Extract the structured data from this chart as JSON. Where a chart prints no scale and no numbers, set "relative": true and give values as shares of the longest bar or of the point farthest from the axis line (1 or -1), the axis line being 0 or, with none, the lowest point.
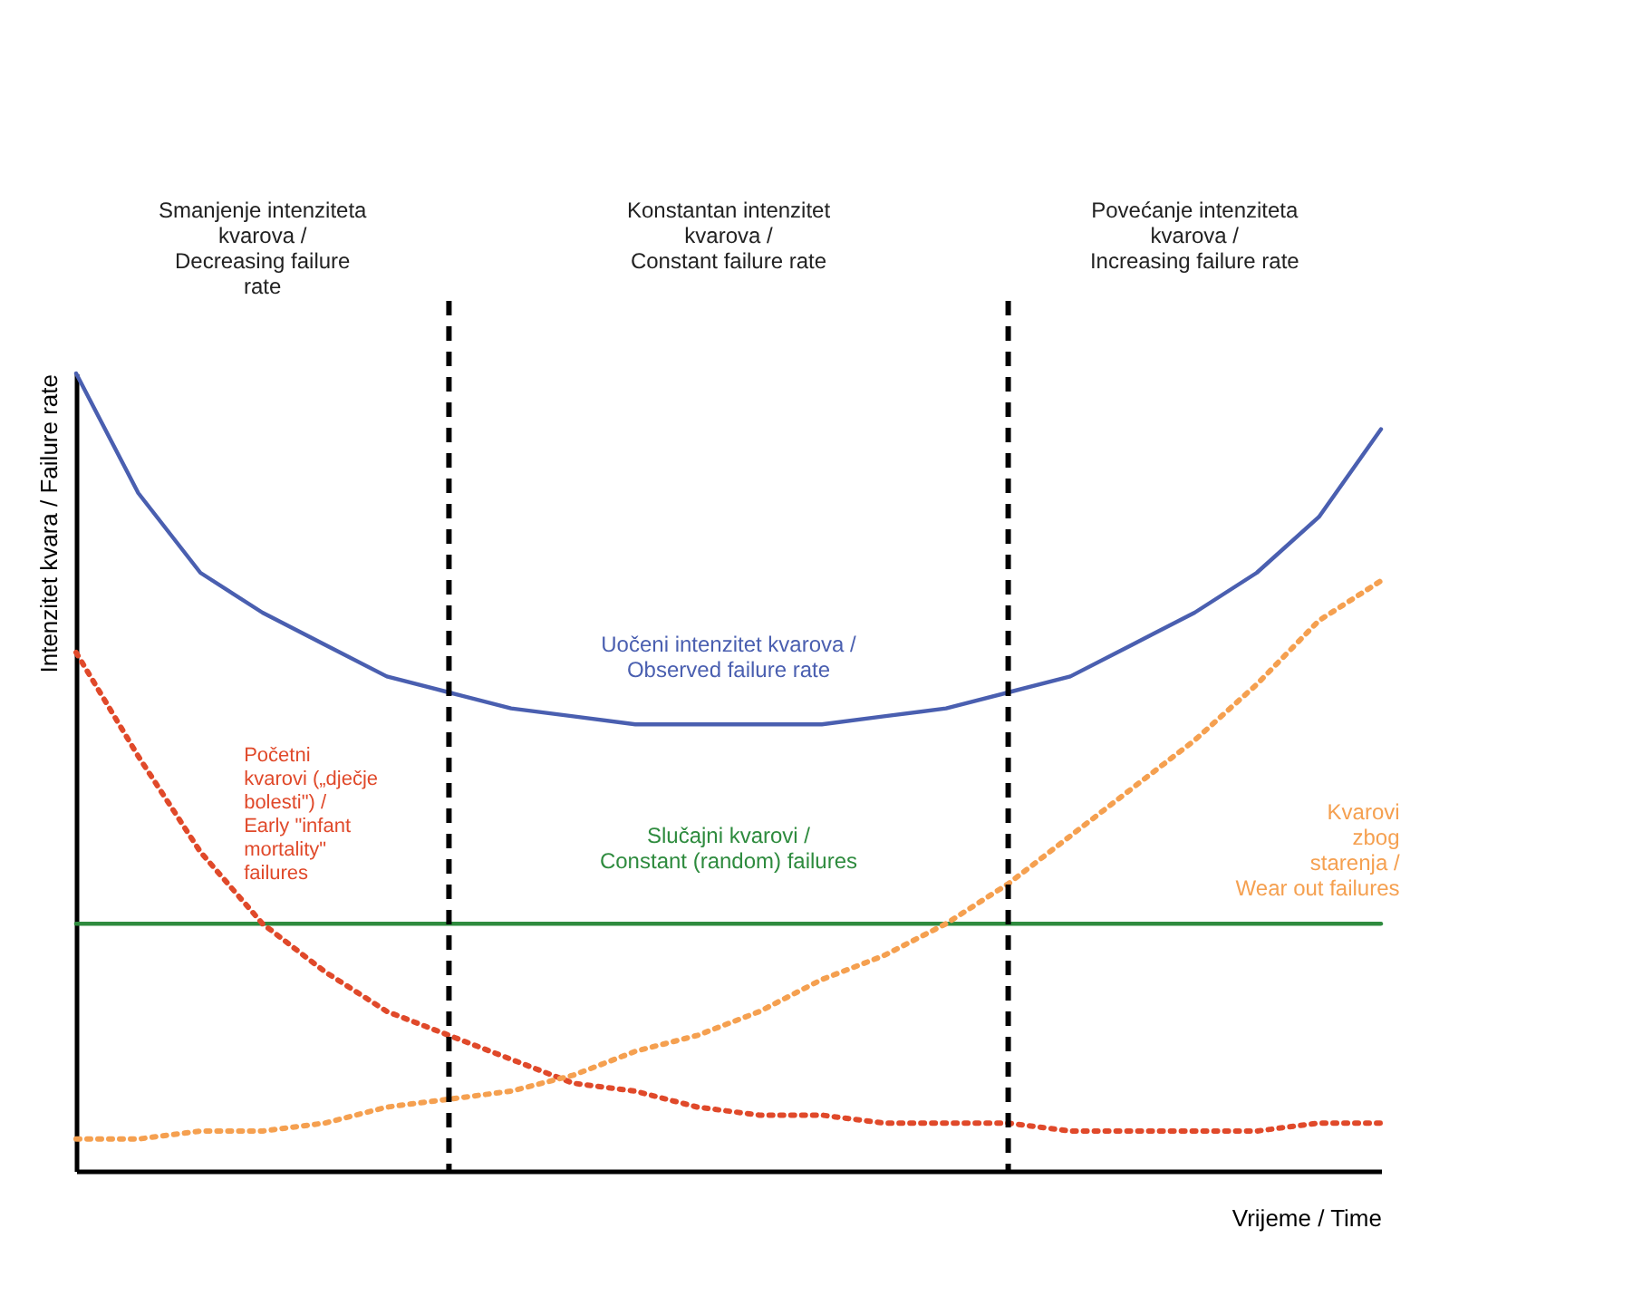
{
  "chart_data": {
    "type": "line",
    "relative": true,
    "xlabel": "Vrijeme / Time",
    "ylabel": "Intenzitet kvara / Failure rate",
    "categories": [
      null,
      null,
      null,
      null,
      null,
      null,
      null,
      null,
      null,
      null,
      null,
      null,
      null,
      null,
      null,
      null,
      null,
      null,
      null,
      null,
      null,
      null
    ],
    "series": [
      {
        "name": "Uočeni intenzitet kvarova /\nObserved failure rate",
        "color": "#4a5fb0",
        "line_style": "solid",
        "values": [
          1.0,
          0.85,
          0.75,
          0.7,
          0.66,
          0.62,
          0.6,
          0.58,
          0.57,
          0.56,
          0.56,
          0.56,
          0.56,
          0.57,
          0.58,
          0.6,
          0.62,
          0.66,
          0.7,
          0.75,
          0.82,
          0.93
        ]
      },
      {
        "name": "Slučajni kvarovi /\nConstant (random) failures",
        "color": "#2e8b3e",
        "line_style": "solid",
        "values": [
          0.31,
          0.31,
          0.31,
          0.31,
          0.31,
          0.31,
          0.31,
          0.31,
          0.31,
          0.31,
          0.31,
          0.31,
          0.31,
          0.31,
          0.31,
          0.31,
          0.31,
          0.31,
          0.31,
          0.31,
          0.31,
          0.31
        ]
      },
      {
        "name": "Početni\nkvarovi („dječje\nbolesti\") /\nEarly \"infant\nmortality\"\nfailures",
        "color": "#e0492a",
        "line_style": "dotted",
        "values": [
          0.65,
          0.52,
          0.4,
          0.31,
          0.25,
          0.2,
          0.17,
          0.14,
          0.11,
          0.1,
          0.08,
          0.07,
          0.07,
          0.06,
          0.06,
          0.06,
          0.05,
          0.05,
          0.05,
          0.05,
          0.06,
          0.06
        ]
      },
      {
        "name": "Kvarovi\nzbog\nstarenja /\nWear out failures",
        "color": "#f5a050",
        "line_style": "dotted",
        "values": [
          0.04,
          0.04,
          0.05,
          0.05,
          0.06,
          0.08,
          0.09,
          0.1,
          0.12,
          0.15,
          0.17,
          0.2,
          0.24,
          0.27,
          0.31,
          0.36,
          0.42,
          0.48,
          0.54,
          0.61,
          0.69,
          0.74
        ]
      }
    ],
    "annotations": [
      "Smanjenje intenziteta\nkvarova /\nDecreasing failure\nrate",
      "Konstantan intenzitet\nkvarova /\nConstant failure rate",
      "Povećanje intenziteta\nkvarova /\nIncreasing failure rate"
    ],
    "grid": false
  }
}
